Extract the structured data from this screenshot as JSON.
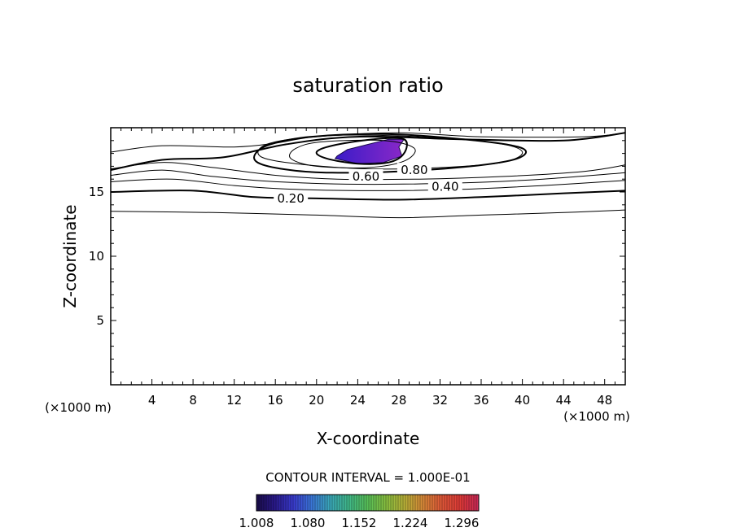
{
  "chart_data": {
    "type": "contour",
    "title": "saturation ratio",
    "xlabel": "X-coordinate",
    "ylabel": "Z-coordinate",
    "x_unit_left": "(×1000 m)",
    "x_unit_right": "(×1000 m)",
    "xlim": [
      0,
      50
    ],
    "ylim": [
      0,
      20
    ],
    "x_ticks": [
      4,
      8,
      12,
      16,
      20,
      24,
      28,
      32,
      36,
      40,
      44,
      48
    ],
    "y_ticks": [
      5,
      10,
      15
    ],
    "contour_labels": [
      {
        "text": "0.20",
        "x": 17.5,
        "y": 14.5
      },
      {
        "text": "0.40",
        "x": 32.5,
        "y": 15.4
      },
      {
        "text": "0.60",
        "x": 24.8,
        "y": 16.2
      },
      {
        "text": "0.80",
        "x": 29.5,
        "y": 16.7
      }
    ],
    "contour_lines": [
      {
        "level": 0.1,
        "bold": false,
        "points": [
          [
            0,
            13.5
          ],
          [
            10,
            13.4
          ],
          [
            20,
            13.2
          ],
          [
            28,
            13.0
          ],
          [
            36,
            13.2
          ],
          [
            44,
            13.4
          ],
          [
            50,
            13.6
          ]
        ]
      },
      {
        "level": 0.2,
        "bold": true,
        "points": [
          [
            0,
            15.0
          ],
          [
            8,
            15.1
          ],
          [
            14,
            14.6
          ],
          [
            20,
            14.5
          ],
          [
            28,
            14.4
          ],
          [
            36,
            14.6
          ],
          [
            44,
            14.9
          ],
          [
            50,
            15.1
          ]
        ]
      },
      {
        "level": 0.3,
        "bold": false,
        "points": [
          [
            0,
            15.8
          ],
          [
            6,
            16.0
          ],
          [
            12,
            15.5
          ],
          [
            18,
            15.2
          ],
          [
            26,
            15.1
          ],
          [
            34,
            15.2
          ],
          [
            42,
            15.5
          ],
          [
            50,
            15.9
          ]
        ]
      },
      {
        "level": 0.4,
        "bold": false,
        "points": [
          [
            0,
            16.3
          ],
          [
            5,
            16.7
          ],
          [
            10,
            16.2
          ],
          [
            16,
            15.8
          ],
          [
            24,
            15.6
          ],
          [
            34,
            15.7
          ],
          [
            42,
            16.0
          ],
          [
            50,
            16.5
          ]
        ]
      },
      {
        "level": 0.5,
        "bold": false,
        "points": [
          [
            0,
            16.8
          ],
          [
            5,
            17.3
          ],
          [
            10,
            16.9
          ],
          [
            16,
            16.3
          ],
          [
            22,
            16.0
          ],
          [
            30,
            16.0
          ],
          [
            38,
            16.2
          ],
          [
            46,
            16.6
          ],
          [
            50,
            17.1
          ]
        ]
      },
      {
        "level": 0.6,
        "bold": true,
        "points": [
          [
            0,
            16.7
          ],
          [
            5,
            17.5
          ],
          [
            11,
            17.7
          ],
          [
            17,
            18.7
          ],
          [
            24,
            19.3
          ],
          [
            34,
            19.1
          ],
          [
            44,
            19.0
          ],
          [
            50,
            19.6
          ]
        ]
      },
      {
        "level": 0.7,
        "bold": false,
        "points": [
          [
            0,
            18.1
          ],
          [
            5,
            18.6
          ],
          [
            12,
            18.5
          ],
          [
            16,
            18.8
          ],
          [
            20,
            19.3
          ],
          [
            28,
            19.6
          ],
          [
            36,
            19.3
          ],
          [
            46,
            19.3
          ],
          [
            50,
            19.6
          ]
        ]
      },
      {
        "level": 0.6,
        "bold": true,
        "closed": true,
        "points": [
          [
            17.5,
            16.7
          ],
          [
            14.5,
            17.2
          ],
          [
            14.0,
            17.9
          ],
          [
            15.5,
            18.7
          ],
          [
            19.5,
            19.3
          ],
          [
            27.0,
            19.5
          ],
          [
            35.5,
            19.0
          ],
          [
            40.0,
            18.4
          ],
          [
            39.5,
            17.6
          ],
          [
            35.0,
            17.0
          ],
          [
            28.0,
            16.6
          ],
          [
            21.5,
            16.5
          ]
        ]
      },
      {
        "level": 0.7,
        "bold": false,
        "closed": true,
        "points": [
          [
            18.0,
            17.2
          ],
          [
            14.5,
            17.8
          ],
          [
            15.5,
            18.8
          ],
          [
            21.5,
            19.4
          ],
          [
            30.0,
            19.3
          ],
          [
            37.5,
            18.8
          ],
          [
            40.0,
            18.1
          ],
          [
            38.0,
            17.3
          ],
          [
            32.0,
            16.9
          ],
          [
            25.0,
            16.8
          ]
        ]
      },
      {
        "level": 0.8,
        "bold": false,
        "closed": true,
        "points": [
          [
            20.0,
            17.0
          ],
          [
            17.5,
            17.6
          ],
          [
            18.0,
            18.4
          ],
          [
            20.5,
            18.9
          ],
          [
            26.5,
            19.0
          ],
          [
            29.5,
            18.4
          ],
          [
            28.5,
            17.4
          ],
          [
            25.0,
            16.9
          ]
        ]
      },
      {
        "level": 0.9,
        "bold": true,
        "closed": true,
        "points": [
          [
            21.0,
            17.6
          ],
          [
            20.0,
            18.1
          ],
          [
            21.5,
            18.6
          ],
          [
            25.5,
            19.1
          ],
          [
            28.5,
            19.1
          ],
          [
            28.5,
            18.0
          ],
          [
            27.0,
            17.3
          ],
          [
            24.0,
            17.2
          ]
        ]
      }
    ],
    "supersaturated_region": {
      "points": [
        [
          22.0,
          17.8
        ],
        [
          23.0,
          18.3
        ],
        [
          25.0,
          18.7
        ],
        [
          27.0,
          19.1
        ],
        [
          28.5,
          19.1
        ],
        [
          28.0,
          18.5
        ],
        [
          28.3,
          17.8
        ],
        [
          26.5,
          17.3
        ],
        [
          24.0,
          17.2
        ],
        [
          21.8,
          17.6
        ]
      ]
    },
    "colorbar": {
      "min": 1.008,
      "max": 1.32,
      "tick_labels": [
        "1.008",
        "1.080",
        "1.152",
        "1.224",
        "1.296"
      ],
      "colors": [
        "#1a0c4a",
        "#2a1a8c",
        "#3a3cd0",
        "#3a78d8",
        "#3aa8b8",
        "#40b888",
        "#58c058",
        "#88c040",
        "#b8b038",
        "#d88838",
        "#e05838",
        "#e03a38",
        "#c82858"
      ]
    },
    "annotation": "CONTOUR INTERVAL = 1.000E-01"
  }
}
